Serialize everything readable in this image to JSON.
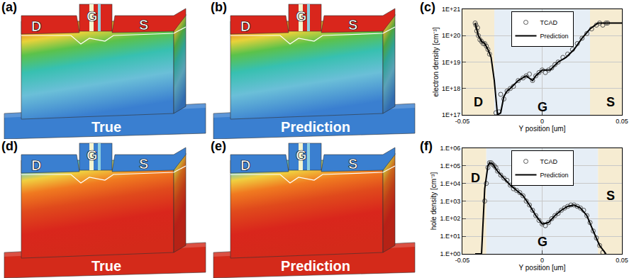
{
  "panels": [
    {
      "label": "(a)",
      "caption": "True",
      "terminals": [
        "D",
        "G",
        "S"
      ],
      "colors": [
        "#d9261c",
        "#f08a1e",
        "#e8d23a",
        "#5cc24a",
        "#37c0b0",
        "#6bbfd8",
        "#3a7fd0"
      ]
    },
    {
      "label": "(b)",
      "caption": "Prediction",
      "terminals": [
        "D",
        "G",
        "S"
      ],
      "colors": [
        "#d9261c",
        "#f08a1e",
        "#e8d23a",
        "#5cc24a",
        "#37c0b0",
        "#6bbfd8",
        "#3a7fd0"
      ]
    },
    {
      "label": "(d)",
      "caption": "True",
      "terminals": [
        "D",
        "G",
        "S"
      ],
      "colors": [
        "#3a7fd0",
        "#5cc4d0",
        "#f0d040",
        "#f07a20",
        "#e04a1c",
        "#d9261c",
        "#d42a1a"
      ]
    },
    {
      "label": "(e)",
      "caption": "Prediction",
      "terminals": [
        "D",
        "G",
        "S"
      ],
      "colors": [
        "#3a7fd0",
        "#5cc4d0",
        "#f0d040",
        "#f07a20",
        "#e04a1c",
        "#d9261c",
        "#d42a1a"
      ]
    }
  ],
  "chart_data": [
    {
      "type": "line",
      "label": "(c)",
      "x_label": "Y position [um]",
      "y_label": "electron density [cm⁻³]",
      "log": "y",
      "grid": true,
      "legend": "upper center",
      "xlim": [
        -0.05,
        0.05
      ],
      "xticks": [
        -0.05,
        0,
        0.05
      ],
      "ylim": [
        1e+17,
        1e+21
      ],
      "yticks": [
        {
          "value": 1e+17,
          "label": "1E+17"
        },
        {
          "value": 1e+18,
          "label": "1E+18"
        },
        {
          "value": 1e+19,
          "label": "1E+19"
        },
        {
          "value": 1e+20,
          "label": "1E+20"
        },
        {
          "value": 1e+21,
          "label": "1E+21"
        }
      ],
      "regions": [
        {
          "x0": -0.05,
          "x1": -0.03,
          "color": "#f6ecd2"
        },
        {
          "x0": -0.03,
          "x1": 0.03,
          "color": "#e6eef6"
        },
        {
          "x0": 0.03,
          "x1": 0.05,
          "color": "#f6ecd2"
        }
      ],
      "annotations": [
        {
          "text": "D",
          "x": -0.04,
          "y": 3e+17
        },
        {
          "text": "G",
          "x": 0,
          "y": 2e+17
        },
        {
          "text": "S",
          "x": 0.043,
          "y": 3e+17
        }
      ],
      "series": [
        {
          "name": "TCAD",
          "color": "#555555",
          "marker": "circle-open",
          "line_style": "none",
          "x": [
            -0.042,
            -0.0415,
            -0.041,
            -0.0405,
            -0.04,
            -0.039,
            -0.038,
            -0.037,
            -0.036,
            -0.035,
            -0.034,
            -0.033,
            -0.029,
            -0.027,
            -0.026,
            -0.024,
            -0.022,
            -0.02,
            -0.018,
            -0.015,
            -0.012,
            -0.01,
            -0.008,
            -0.006,
            -0.004,
            -0.002,
            0,
            0.002,
            0.004,
            0.006,
            0.008,
            0.01,
            0.013,
            0.016,
            0.019,
            0.022,
            0.025,
            0.028,
            0.031,
            0.034,
            0.036,
            0.038,
            0.04,
            0.041
          ],
          "values": [
            3e+20,
            2.5e+20,
            1.5e+20,
            2e+20,
            1e+20,
            7e+19,
            6e+19,
            5e+19,
            5e+19,
            4e+19,
            3e+19,
            2e+19,
            1.2e+17,
            1.3e+17,
            6e+17,
            4e+17,
            8e+17,
            1e+18,
            1.2e+18,
            2e+18,
            2.5e+18,
            3e+18,
            3.5e+18,
            2e+18,
            3e+18,
            4e+18,
            5e+18,
            4e+18,
            5e+18,
            6e+18,
            8e+18,
            1e+19,
            1.5e+19,
            2e+19,
            3e+19,
            5e+19,
            8e+19,
            1.2e+20,
            1.8e+20,
            2.5e+20,
            3e+20,
            2.5e+20,
            3e+20,
            3e+20
          ]
        },
        {
          "name": "Prediction",
          "color": "#000000",
          "marker": "none",
          "line_style": "solid",
          "x": [
            -0.042,
            -0.04,
            -0.038,
            -0.036,
            -0.034,
            -0.032,
            -0.03,
            -0.028,
            -0.026,
            -0.024,
            -0.022,
            -0.02,
            -0.015,
            -0.01,
            -0.006,
            -0.004,
            0,
            0.005,
            0.01,
            0.015,
            0.02,
            0.025,
            0.03,
            0.035,
            0.04,
            0.045,
            0.05
          ],
          "values": [
            3e+20,
            1e+20,
            6e+19,
            5e+19,
            3e+19,
            1.5e+19,
            2e+18,
            1e+17,
            1.2e+17,
            5e+17,
            8e+17,
            1e+18,
            2e+18,
            3e+18,
            2e+18,
            3e+18,
            5e+18,
            5e+18,
            1e+19,
            1.5e+19,
            3e+19,
            8e+19,
            1.8e+20,
            3e+20,
            3e+20,
            3e+20,
            3e+20
          ]
        }
      ]
    },
    {
      "type": "line",
      "label": "(f)",
      "x_label": "Y position [um]",
      "y_label": "hole density [cm⁻³]",
      "log": "y",
      "grid": true,
      "legend": "upper center",
      "xlim": [
        -0.05,
        0.05
      ],
      "xticks": [
        -0.05,
        0,
        0.05
      ],
      "ylim": [
        1,
        1000000.0
      ],
      "yticks": [
        {
          "value": 1,
          "label": "1.E+00"
        },
        {
          "value": 10,
          "label": "1.E+01"
        },
        {
          "value": 100,
          "label": "1.E+02"
        },
        {
          "value": 1000,
          "label": "1.E+03"
        },
        {
          "value": 10000,
          "label": "1.E+04"
        },
        {
          "value": 100000,
          "label": "1.E+05"
        },
        {
          "value": 1000000,
          "label": "1.E+06"
        }
      ],
      "regions": [
        {
          "x0": -0.05,
          "x1": -0.035,
          "color": "#f6ecd2"
        },
        {
          "x0": -0.035,
          "x1": 0.035,
          "color": "#e6eef6"
        },
        {
          "x0": 0.035,
          "x1": 0.05,
          "color": "#f6ecd2"
        }
      ],
      "annotations": [
        {
          "text": "D",
          "x": -0.042,
          "y": 20000
        },
        {
          "text": "G",
          "x": 0,
          "y": 5
        },
        {
          "text": "S",
          "x": 0.043,
          "y": 2000
        }
      ],
      "series": [
        {
          "name": "TCAD",
          "color": "#555555",
          "marker": "circle-open",
          "line_style": "none",
          "x": [
            -0.036,
            -0.035,
            -0.034,
            -0.033,
            -0.032,
            -0.031,
            -0.03,
            -0.029,
            -0.028,
            -0.026,
            -0.024,
            -0.022,
            -0.02,
            -0.018,
            -0.016,
            -0.014,
            -0.012,
            -0.01,
            -0.008,
            -0.006,
            -0.004,
            -0.002,
            0,
            0.002,
            0.004,
            0.006,
            0.008,
            0.01,
            0.012,
            0.014,
            0.016,
            0.018,
            0.02,
            0.022,
            0.024,
            0.026,
            0.028,
            0.03,
            0.032,
            0.034,
            0.036,
            0.038
          ],
          "values": [
            1000,
            10000,
            80000,
            150000,
            150000,
            120000,
            100000,
            80000,
            50000,
            30000,
            20000,
            15000,
            8000,
            5000,
            4000,
            3000,
            2000,
            1000,
            600,
            300,
            150,
            80,
            50,
            40,
            60,
            100,
            150,
            200,
            300,
            400,
            500,
            600,
            600,
            500,
            400,
            300,
            150,
            60,
            20,
            8,
            3,
            1.2
          ]
        },
        {
          "name": "Prediction",
          "color": "#000000",
          "marker": "none",
          "line_style": "solid",
          "x": [
            -0.042,
            -0.038,
            -0.036,
            -0.034,
            -0.033,
            -0.031,
            -0.028,
            -0.024,
            -0.02,
            -0.016,
            -0.012,
            -0.008,
            -0.004,
            0,
            0.004,
            0.008,
            0.012,
            0.016,
            0.02,
            0.024,
            0.028,
            0.032,
            0.036,
            0.04
          ],
          "values": [
            1,
            1,
            5000,
            100000,
            150000,
            130000,
            50000,
            20000,
            8000,
            4000,
            2000,
            600,
            150,
            50,
            60,
            150,
            300,
            500,
            600,
            400,
            150,
            20,
            3,
            1
          ]
        }
      ]
    }
  ]
}
